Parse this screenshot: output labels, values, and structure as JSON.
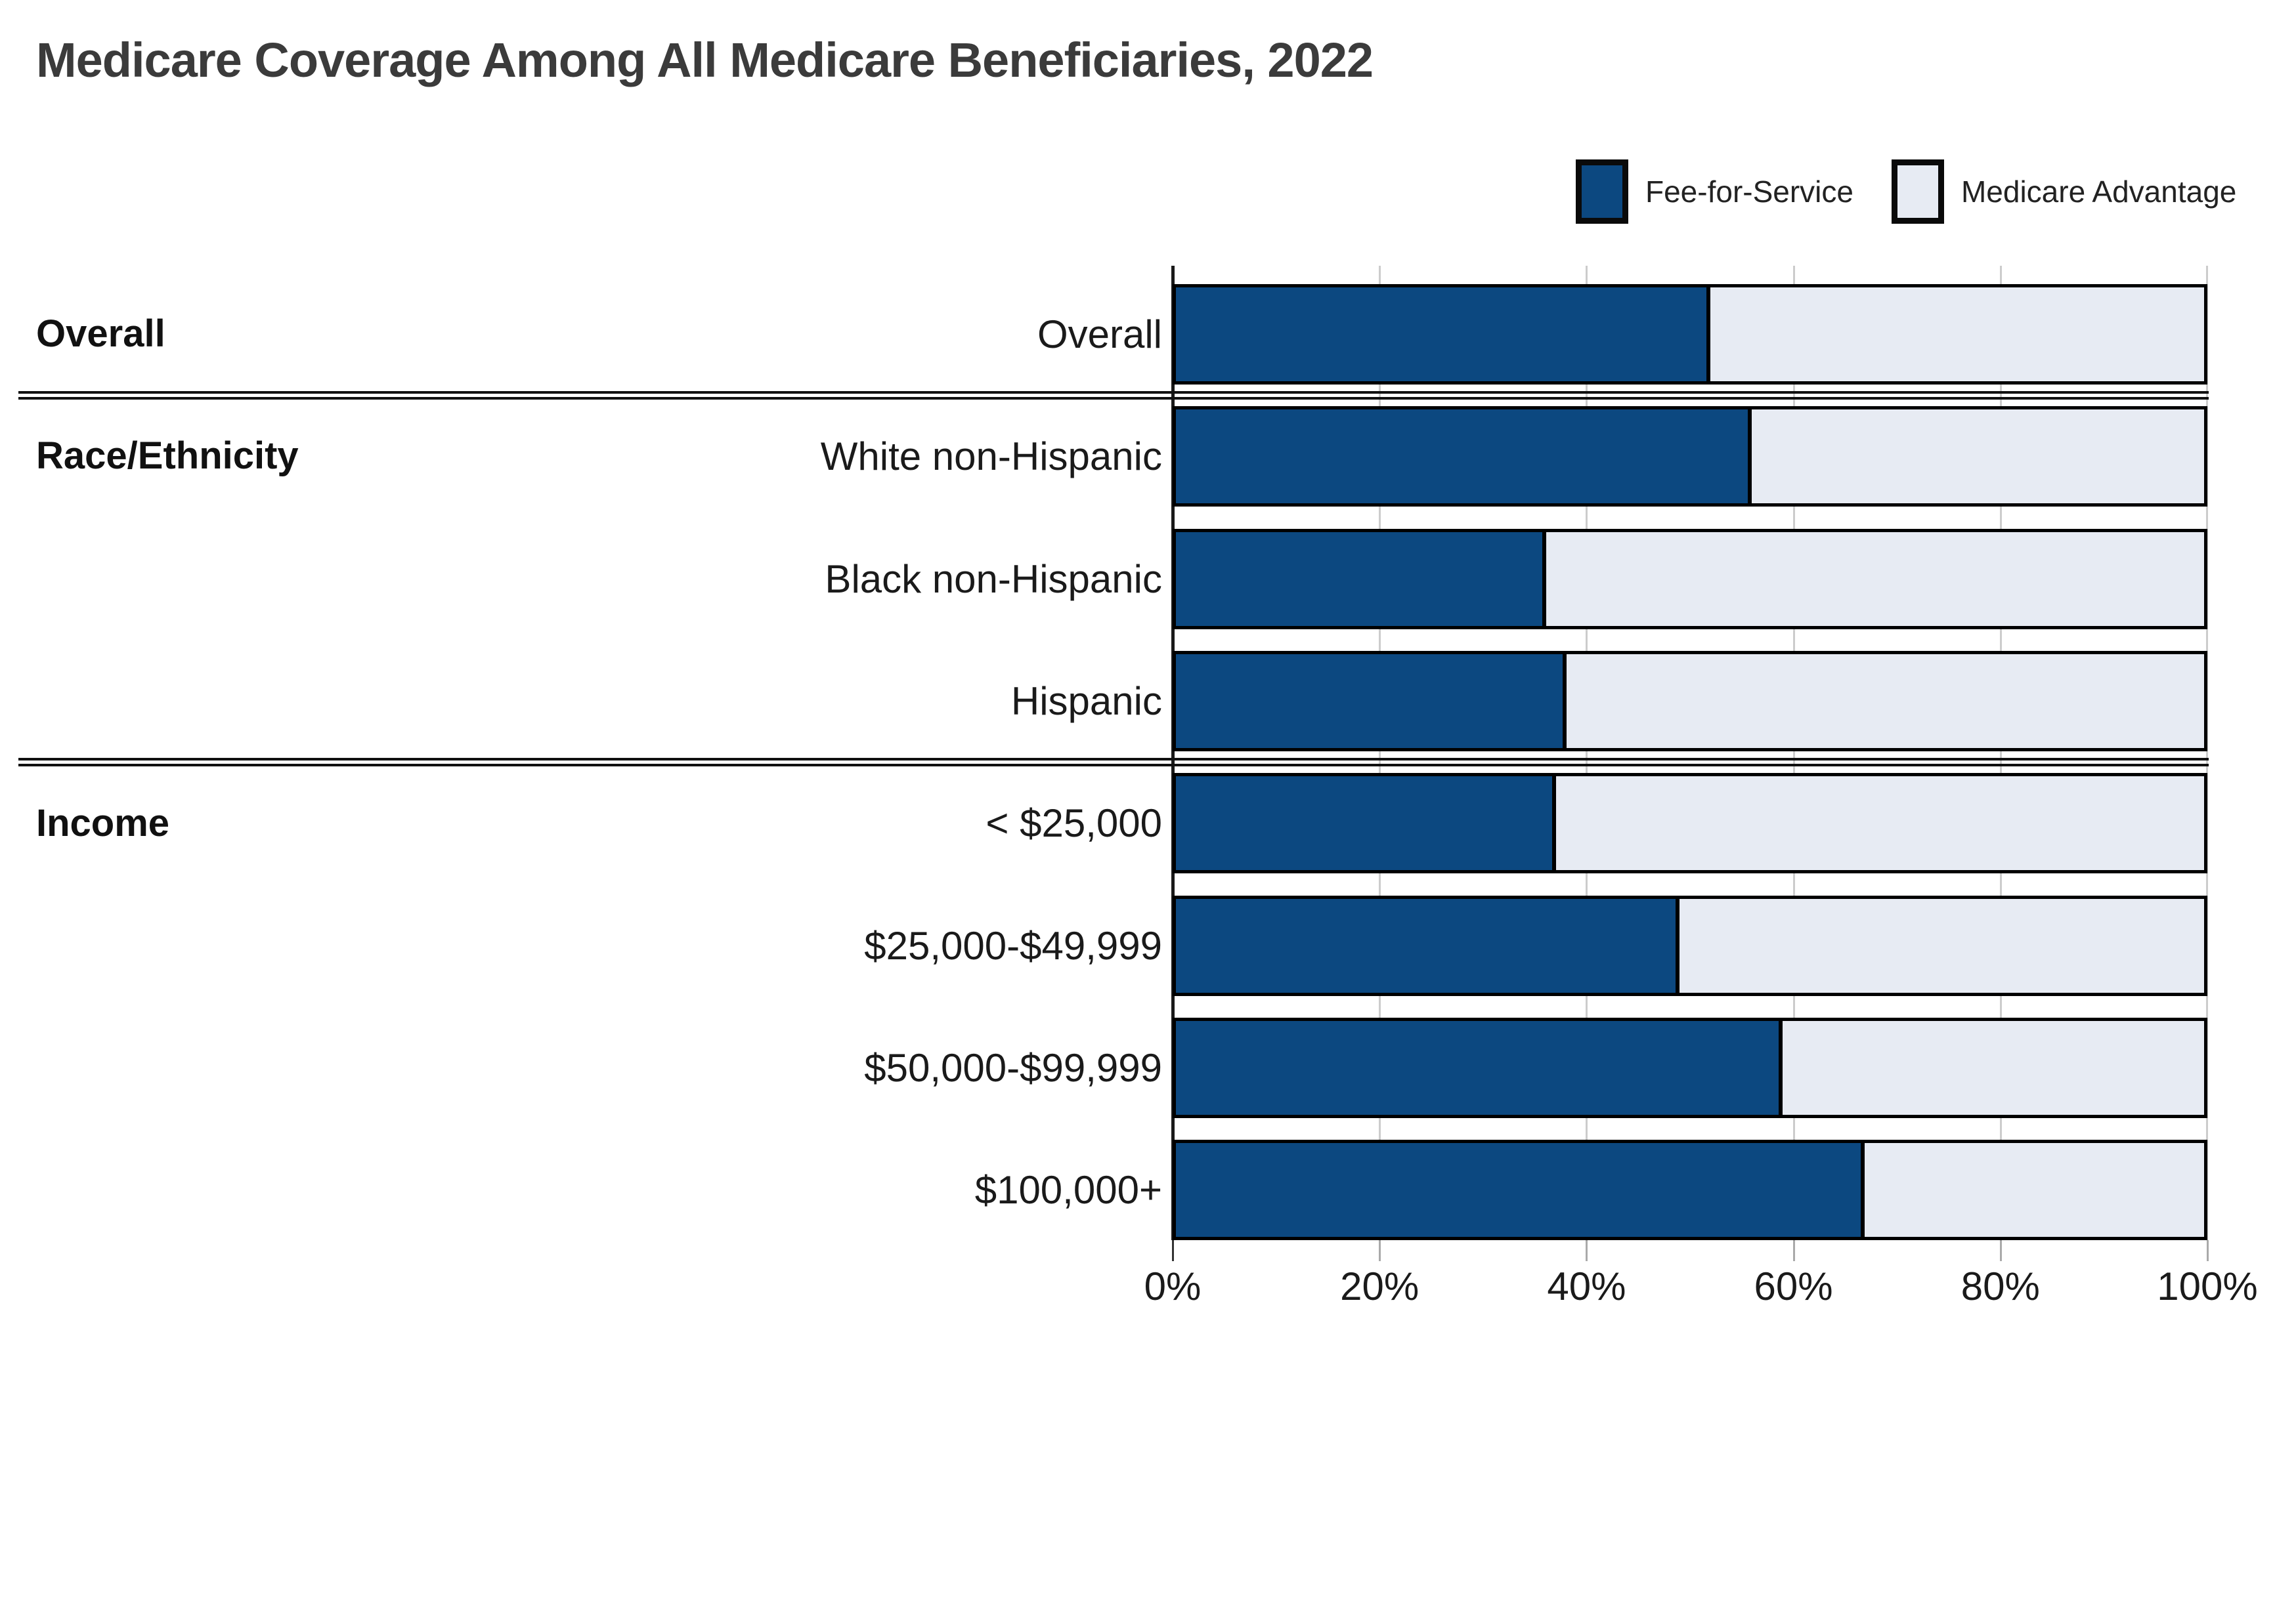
{
  "title": "Medicare Coverage Among All Medicare Beneficiaries, 2022",
  "legend": {
    "items": [
      {
        "label": "Fee-for-Service",
        "color": "#0C4880"
      },
      {
        "label": "Medicare Advantage",
        "color": "#E7EBF3"
      }
    ]
  },
  "chart_data": {
    "type": "bar",
    "orientation": "horizontal-stacked",
    "title": "Medicare Coverage Among All Medicare Beneficiaries, 2022",
    "categories": [
      "Overall",
      "White non-Hispanic",
      "Black non-Hispanic",
      "Hispanic",
      "< $25,000",
      "$25,000-$49,999",
      "$50,000-$99,999",
      "$100,000+"
    ],
    "groups": [
      {
        "label": "Overall",
        "rows": [
          "Overall"
        ]
      },
      {
        "label": "Race/Ethnicity",
        "rows": [
          "White non-Hispanic",
          "Black non-Hispanic",
          "Hispanic"
        ]
      },
      {
        "label": "Income",
        "rows": [
          "< $25,000",
          "$25,000-$49,999",
          "$50,000-$99,999",
          "$100,000+"
        ]
      }
    ],
    "series": [
      {
        "name": "Fee-for-Service",
        "color": "#0C4880",
        "values": [
          52,
          56,
          36,
          38,
          37,
          49,
          59,
          67
        ]
      },
      {
        "name": "Medicare Advantage",
        "color": "#E7EBF3",
        "values": [
          48,
          44,
          64,
          62,
          63,
          51,
          41,
          33
        ]
      }
    ],
    "x_axis": {
      "min": 0,
      "max": 100,
      "unit": "%",
      "tick_labels": [
        "0%",
        "20%",
        "40%",
        "60%",
        "80%",
        "100%"
      ],
      "grid": true
    },
    "legend_position": "top-right"
  }
}
